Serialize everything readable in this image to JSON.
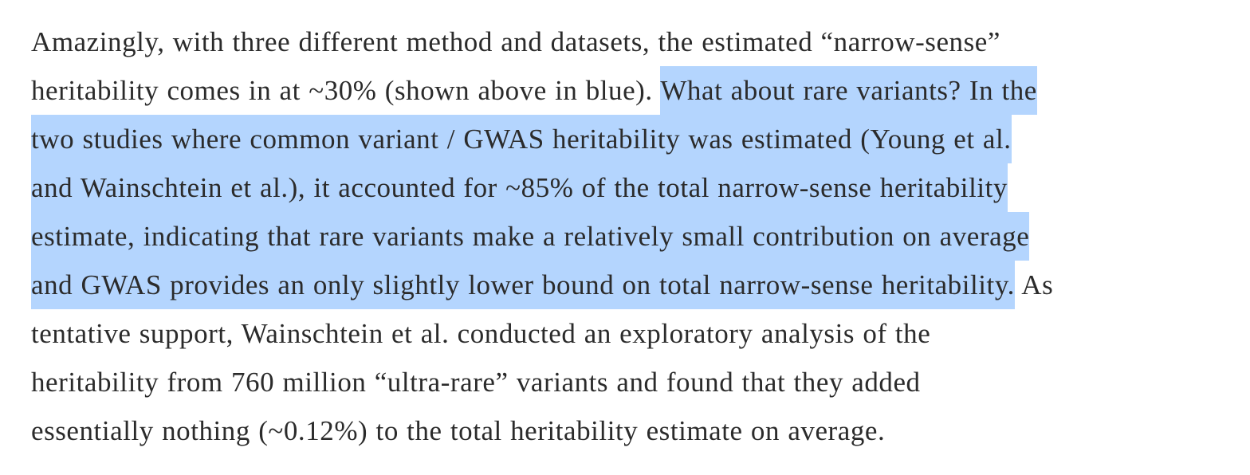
{
  "paragraph": {
    "lines": [
      {
        "before": "Amazingly, with three different method and datasets, the estimated “narrow-sense”",
        "selected": "",
        "after": ""
      },
      {
        "before": "heritability comes in at ~30% (shown above in blue). ",
        "selected": "What about rare variants? In the",
        "after": ""
      },
      {
        "before": "",
        "selected": "two studies where common variant / GWAS heritability was estimated (Young et al.",
        "after": ""
      },
      {
        "before": "",
        "selected": "and Wainschtein et al.), it accounted for ~85% of the total narrow-sense heritability",
        "after": ""
      },
      {
        "before": "",
        "selected": "estimate, indicating that rare variants make a relatively small contribution on average",
        "after": ""
      },
      {
        "before": "",
        "selected": "and GWAS provides an only slightly lower bound on total narrow-sense heritability.",
        "after": " As"
      },
      {
        "before": "tentative support, Wainschtein et al. conducted an exploratory analysis of the",
        "selected": "",
        "after": ""
      },
      {
        "before": "heritability from 760 million “ultra-rare” variants and found that they added",
        "selected": "",
        "after": ""
      },
      {
        "before": "essentially nothing (~0.12%) to the total heritability estimate on average.",
        "selected": "",
        "after": ""
      }
    ]
  },
  "colors": {
    "text": "#2b2b2b",
    "selection": "#b4d5fe",
    "background": "#ffffff"
  }
}
